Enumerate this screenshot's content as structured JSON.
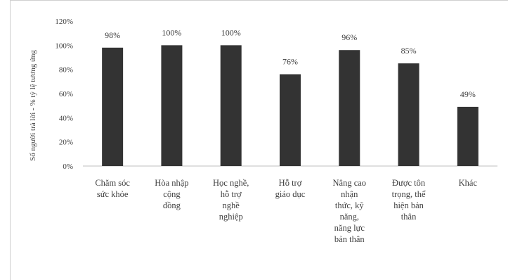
{
  "chart_data": {
    "type": "bar",
    "title": "",
    "xlabel": "",
    "ylabel": "Số người trả lời   - % tỷ lệ tương ứng",
    "ylim": [
      0,
      120
    ],
    "yticks": [
      "0%",
      "20%",
      "40%",
      "60%",
      "80%",
      "100%",
      "120%"
    ],
    "ytick_values": [
      0,
      20,
      40,
      60,
      80,
      100,
      120
    ],
    "grid": false,
    "legend": "none",
    "bar_color": "#333333",
    "categories": [
      "Chăm sóc\nsức khỏe",
      "Hòa nhập\ncộng\nđồng",
      "Học nghề,\nhỗ trợ\nnghề\nnghiệp",
      "Hỗ trợ\ngiáo dục",
      "Nâng cao\nnhận\nthức, kỹ\nnăng,\nnăng lực\nbản thân",
      "Được tôn\ntrọng, thể\nhiện bản\nthân",
      "Khác"
    ],
    "values": [
      98,
      100,
      100,
      76,
      96,
      85,
      49
    ],
    "data_labels": [
      "98%",
      "100%",
      "100%",
      "76%",
      "96%",
      "85%",
      "49%"
    ]
  }
}
